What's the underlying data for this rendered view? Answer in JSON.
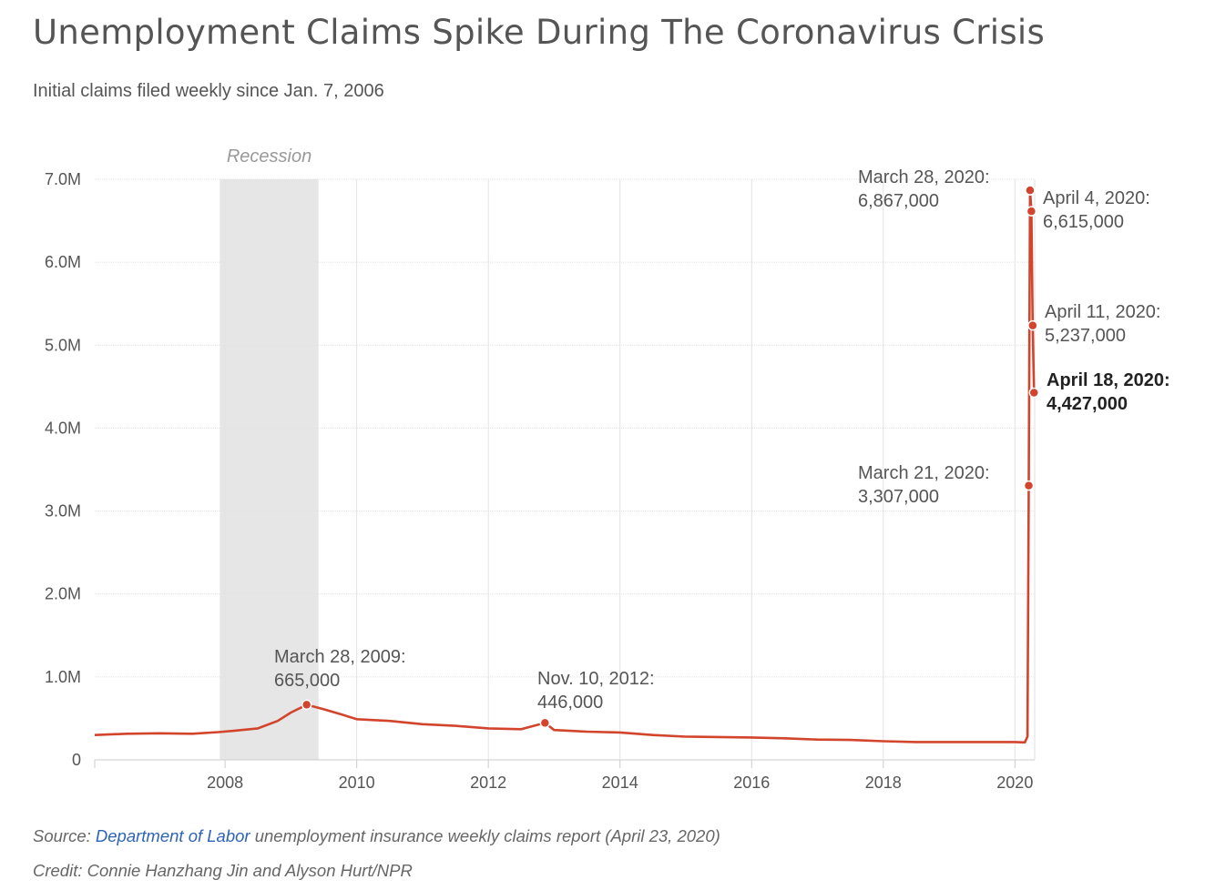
{
  "title": "Unemployment Claims Spike During The Coronavirus Crisis",
  "subtitle": "Initial claims filed weekly since Jan. 7, 2006",
  "footer": {
    "source_prefix": "Source: ",
    "source_link": "Department of Labor",
    "source_suffix": " unemployment insurance weekly claims report (April 23, 2020)",
    "credit": "Credit: Connie Hanzhang Jin and Alyson Hurt/NPR"
  },
  "colors": {
    "line": "#d2452c",
    "grid": "#e2e2e2",
    "recession": "#e6e6e6",
    "text": "#555555",
    "link": "#2e64b6"
  },
  "chart_data": {
    "type": "line",
    "title": "Unemployment Claims Spike During The Coronavirus Crisis",
    "subtitle": "Initial claims filed weekly since Jan. 7, 2006",
    "xlim": [
      2006.02,
      2020.3
    ],
    "ylim": [
      0,
      7000000
    ],
    "grid": true,
    "x_ticks": [
      {
        "value": 2008,
        "label": "2008"
      },
      {
        "value": 2010,
        "label": "2010"
      },
      {
        "value": 2012,
        "label": "2012"
      },
      {
        "value": 2014,
        "label": "2014"
      },
      {
        "value": 2016,
        "label": "2016"
      },
      {
        "value": 2018,
        "label": "2018"
      },
      {
        "value": 2020,
        "label": "2020"
      }
    ],
    "y_ticks": [
      {
        "value": 0,
        "label": "0"
      },
      {
        "value": 1000000,
        "label": "1.0M"
      },
      {
        "value": 2000000,
        "label": "2.0M"
      },
      {
        "value": 3000000,
        "label": "3.0M"
      },
      {
        "value": 4000000,
        "label": "4.0M"
      },
      {
        "value": 5000000,
        "label": "5.0M"
      },
      {
        "value": 6000000,
        "label": "6.0M"
      },
      {
        "value": 7000000,
        "label": "7.0M"
      }
    ],
    "recession": {
      "start": 2007.92,
      "end": 2009.42,
      "label": "Recession"
    },
    "series": [
      {
        "x": [
          2006.02,
          2006.5,
          2007.0,
          2007.5,
          2007.9,
          2008.2,
          2008.5,
          2008.8,
          2009.0,
          2009.24,
          2009.5,
          2009.8,
          2010.0,
          2010.5,
          2011.0,
          2011.5,
          2012.0,
          2012.5,
          2012.86,
          2013.0,
          2013.5,
          2014.0,
          2014.5,
          2015.0,
          2015.5,
          2016.0,
          2016.5,
          2017.0,
          2017.5,
          2018.0,
          2018.5,
          2019.0,
          2019.5,
          2020.0,
          2020.15,
          2020.19,
          2020.21,
          2020.23,
          2020.25,
          2020.27,
          2020.29
        ],
        "y": [
          300000,
          315000,
          320000,
          315000,
          335000,
          355000,
          380000,
          470000,
          570000,
          665000,
          610000,
          540000,
          490000,
          470000,
          430000,
          410000,
          380000,
          370000,
          446000,
          360000,
          340000,
          330000,
          300000,
          280000,
          275000,
          270000,
          260000,
          245000,
          240000,
          225000,
          215000,
          215000,
          215000,
          215000,
          211000,
          281000,
          3307000,
          6867000,
          6615000,
          5237000,
          4427000
        ]
      }
    ],
    "markers": [
      {
        "x": 2009.24,
        "y": 665000
      },
      {
        "x": 2012.86,
        "y": 446000
      },
      {
        "x": 2020.21,
        "y": 3307000
      },
      {
        "x": 2020.23,
        "y": 6867000
      },
      {
        "x": 2020.25,
        "y": 6615000
      },
      {
        "x": 2020.27,
        "y": 5237000
      },
      {
        "x": 2020.29,
        "y": 4427000
      }
    ],
    "annotations": [
      {
        "date": "March 28, 2009:",
        "value": "665,000",
        "bold": false
      },
      {
        "date": "Nov. 10, 2012:",
        "value": "446,000",
        "bold": false
      },
      {
        "date": "March 21, 2020:",
        "value": "3,307,000",
        "bold": false
      },
      {
        "date": "March 28, 2020:",
        "value": "6,867,000",
        "bold": false
      },
      {
        "date": "April 4, 2020:",
        "value": "6,615,000",
        "bold": false
      },
      {
        "date": "April 11, 2020:",
        "value": "5,237,000",
        "bold": false
      },
      {
        "date": "April 18, 2020:",
        "value": "4,427,000",
        "bold": true
      }
    ]
  }
}
